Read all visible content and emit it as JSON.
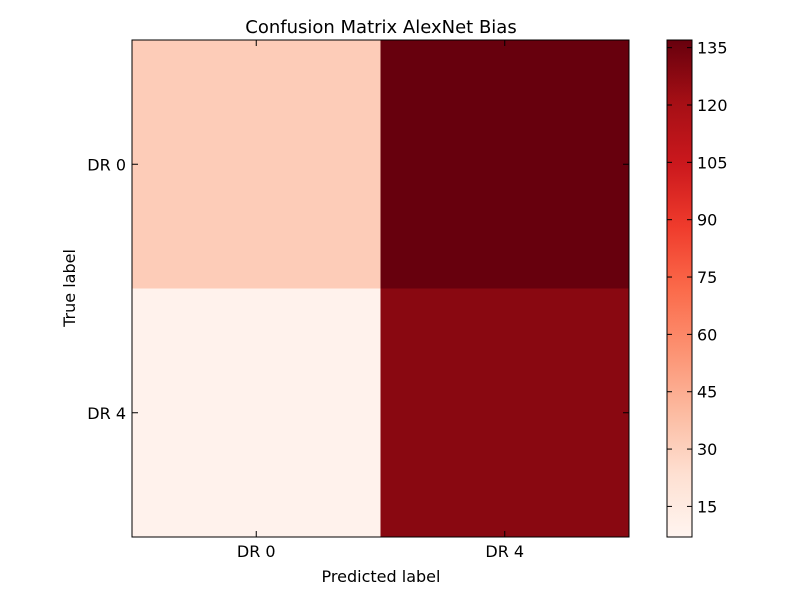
{
  "chart_data": {
    "type": "heatmap",
    "title": "Confusion Matrix AlexNet Bias",
    "xlabel": "Predicted label",
    "ylabel": "True label",
    "x_categories": [
      "DR 0",
      "DR 4"
    ],
    "y_categories": [
      "DR 0",
      "DR 4"
    ],
    "values": [
      [
        32,
        137
      ],
      [
        9,
        128
      ]
    ],
    "colormap": "Reds",
    "colorbar": {
      "min": 7,
      "max": 137,
      "ticks": [
        15,
        30,
        45,
        60,
        75,
        90,
        105,
        120,
        135
      ]
    }
  }
}
